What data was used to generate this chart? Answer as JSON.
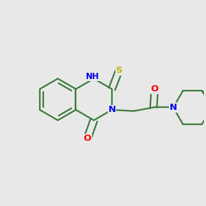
{
  "bg_color": "#e8e8e8",
  "bond_color": "#3a7a3a",
  "bond_width": 1.6,
  "atom_colors": {
    "N": "#0000ee",
    "O": "#ff0000",
    "S": "#bbbb00",
    "C": "#3a7a3a"
  },
  "font_size": 9.5
}
